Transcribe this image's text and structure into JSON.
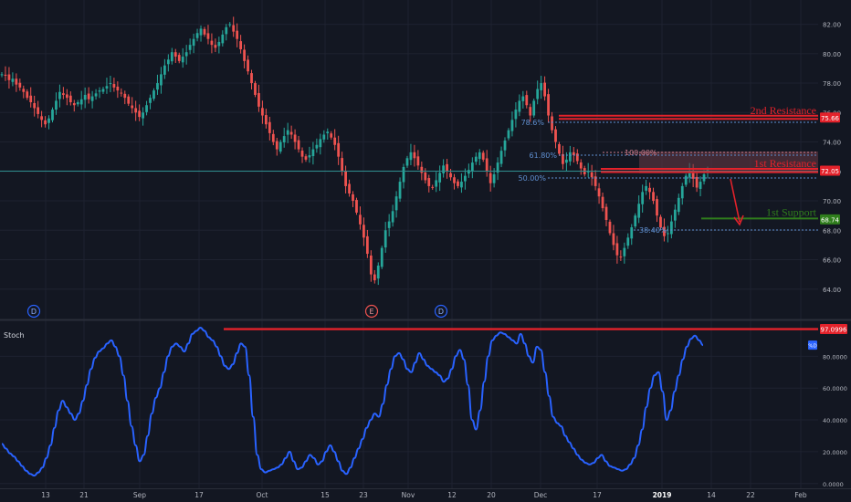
{
  "chart_data": {
    "type": "candlestick",
    "price_axis": {
      "ticks": [
        "64.00",
        "66.00",
        "68.00",
        "70.00",
        "72.00",
        "74.00",
        "76.00",
        "78.00",
        "80.00",
        "82.00"
      ],
      "range": [
        62.0,
        83.4
      ]
    },
    "stoch_axis": {
      "ticks": [
        "0.0000",
        "20.0000",
        "40.0000",
        "60.0000",
        "80.0000"
      ],
      "range": [
        -3,
        102
      ],
      "pane_label": "Stoch",
      "current_badge": "%D"
    },
    "time_axis": {
      "labels": [
        "13",
        "21",
        "Sep",
        "17",
        "Oct",
        "15",
        "23",
        "Nov",
        "12",
        "20",
        "Dec",
        "17",
        "2019",
        "14",
        "22",
        "Feb"
      ]
    },
    "levels": [
      {
        "name": "2nd Resistance",
        "value": 75.66,
        "badge": "75.66",
        "color": "#e3222b"
      },
      {
        "name": "1st Resistance",
        "value": 72.05,
        "badge": "72.05",
        "color": "#e3222b"
      },
      {
        "name": "1st Support",
        "value": 68.74,
        "badge": "68.74",
        "color": "#2f7d1c"
      }
    ],
    "horizontal_line": {
      "value": 72.05,
      "color": "#2f8f8f"
    },
    "fib_labels": [
      "78.6%",
      "61.80%",
      "50.00%",
      "100.00%",
      "38.40%"
    ],
    "stoch_level": {
      "value": 97.0996,
      "badge": "97.0996",
      "color": "#e3222b"
    },
    "event_markers": [
      "D",
      "E",
      "D"
    ],
    "price_series": [
      78.6,
      78.5,
      78.2,
      78.3,
      77.9,
      77.7,
      77.4,
      77.0,
      76.7,
      76.3,
      75.9,
      75.5,
      75.2,
      75.6,
      76.2,
      76.8,
      77.4,
      77.2,
      77.0,
      76.7,
      76.5,
      76.7,
      76.9,
      77.2,
      76.9,
      77.1,
      77.3,
      77.5,
      77.6,
      77.8,
      78.0,
      77.7,
      77.5,
      77.3,
      77.0,
      76.6,
      76.3,
      76.0,
      75.7,
      76.0,
      76.5,
      77.0,
      77.5,
      78.0,
      78.6,
      79.2,
      79.6,
      80.1,
      79.8,
      79.5,
      79.8,
      80.1,
      80.6,
      81.0,
      81.4,
      81.7,
      81.3,
      81.0,
      80.6,
      80.4,
      80.8,
      81.3,
      81.8,
      82.0,
      81.5,
      81.0,
      80.3,
      79.5,
      78.8,
      78.0,
      77.2,
      76.4,
      75.8,
      75.2,
      74.6,
      74.0,
      73.5,
      74.0,
      74.4,
      74.8,
      74.5,
      74.0,
      73.5,
      73.0,
      72.8,
      73.1,
      73.5,
      73.8,
      74.2,
      74.5,
      74.7,
      74.3,
      73.8,
      73.0,
      72.0,
      71.0,
      70.5,
      70.0,
      69.2,
      68.4,
      67.5,
      66.4,
      65.0,
      64.6,
      65.6,
      66.8,
      68.0,
      68.6,
      69.3,
      70.3,
      71.3,
      72.3,
      72.9,
      73.3,
      72.9,
      72.4,
      71.9,
      71.4,
      71.0,
      70.9,
      71.4,
      71.9,
      72.4,
      72.0,
      71.6,
      71.2,
      71.0,
      71.3,
      71.7,
      72.1,
      72.6,
      73.0,
      73.3,
      72.8,
      72.0,
      71.2,
      71.8,
      72.6,
      73.4,
      74.1,
      74.8,
      75.5,
      76.2,
      76.8,
      77.1,
      76.5,
      75.8,
      76.8,
      77.6,
      78.0,
      77.1,
      75.8,
      74.8,
      74.0,
      73.2,
      72.5,
      72.8,
      73.3,
      73.1,
      72.7,
      72.2,
      71.8,
      72.0,
      71.6,
      71.0,
      70.3,
      69.5,
      68.7,
      67.8,
      67.0,
      66.3,
      66.2,
      66.8,
      67.5,
      68.2,
      69.0,
      69.8,
      70.6,
      71.0,
      70.6,
      70.0,
      69.0,
      68.2,
      67.6,
      67.8,
      68.6,
      69.4,
      70.2,
      71.0,
      71.7,
      72.0,
      71.5,
      70.9,
      71.3,
      71.8,
      72.1
    ],
    "stoch_series": [
      25,
      22,
      19,
      17,
      14,
      11,
      8,
      6,
      5,
      7,
      10,
      16,
      24,
      35,
      46,
      52,
      48,
      44,
      40,
      44,
      52,
      62,
      72,
      79,
      83,
      85,
      88,
      90,
      86,
      80,
      68,
      52,
      36,
      24,
      14,
      18,
      30,
      44,
      54,
      60,
      70,
      80,
      86,
      88,
      86,
      83,
      88,
      94,
      96,
      98,
      96,
      92,
      90,
      86,
      80,
      74,
      72,
      75,
      82,
      88,
      86,
      68,
      42,
      18,
      9,
      7,
      8,
      9,
      10,
      12,
      16,
      20,
      14,
      9,
      10,
      14,
      18,
      16,
      12,
      14,
      20,
      24,
      20,
      14,
      8,
      6,
      10,
      16,
      22,
      28,
      35,
      40,
      44,
      42,
      50,
      62,
      72,
      80,
      82,
      78,
      72,
      70,
      76,
      82,
      78,
      74,
      72,
      70,
      68,
      64,
      66,
      72,
      80,
      84,
      78,
      62,
      40,
      34,
      46,
      64,
      80,
      90,
      93,
      95,
      94,
      92,
      90,
      88,
      94,
      88,
      80,
      76,
      86,
      84,
      70,
      55,
      42,
      38,
      36,
      30,
      26,
      22,
      18,
      15,
      13,
      12,
      13,
      16,
      18,
      14,
      11,
      10,
      9,
      8,
      9,
      12,
      16,
      24,
      34,
      48,
      60,
      68,
      70,
      58,
      40,
      46,
      58,
      68,
      78,
      86,
      91,
      93,
      90,
      87
    ]
  }
}
